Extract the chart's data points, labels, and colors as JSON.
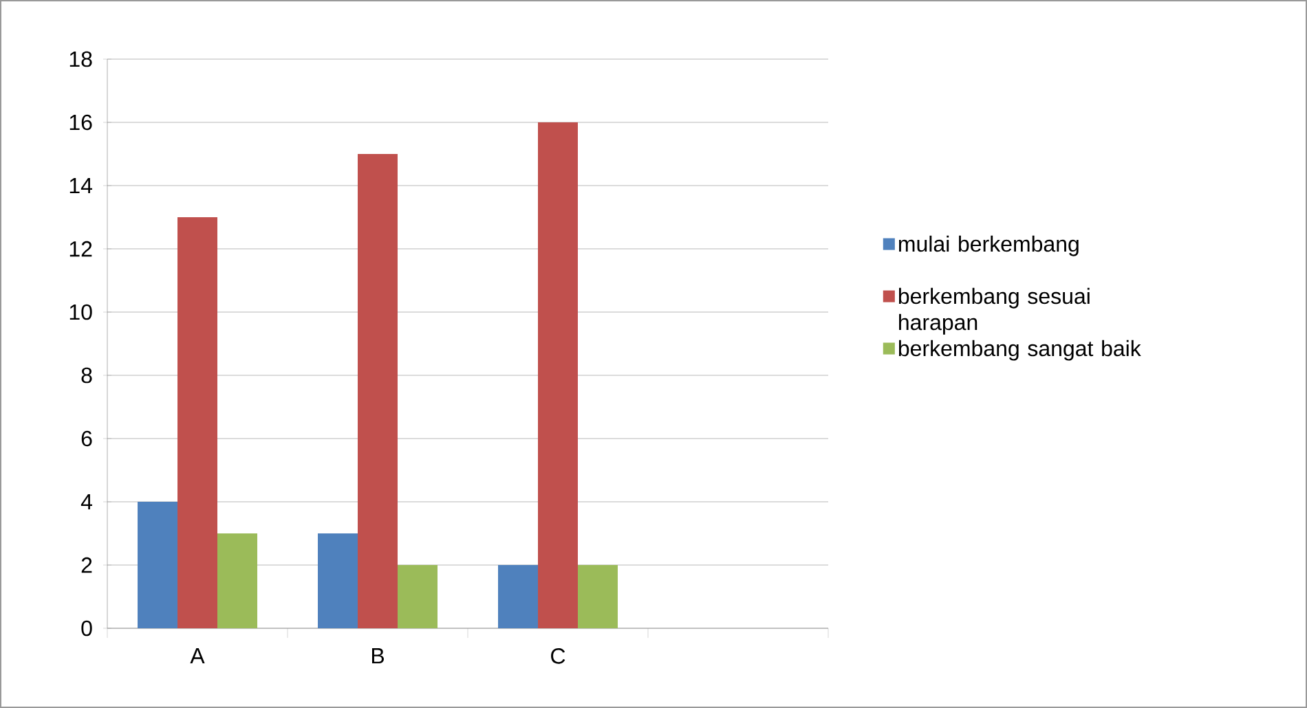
{
  "chart_data": {
    "type": "bar",
    "categories": [
      "A",
      "B",
      "C",
      null
    ],
    "series": [
      {
        "name": "mulai berkembang",
        "color": "#4f81bd",
        "values": [
          4,
          3,
          2,
          null
        ]
      },
      {
        "name": "berkembang sesuai harapan",
        "color": "#c0504d",
        "values": [
          13,
          15,
          16,
          null
        ]
      },
      {
        "name": "berkembang sangat baik",
        "color": "#9bbb59",
        "values": [
          3,
          2,
          2,
          null
        ]
      }
    ],
    "ylim": [
      0,
      18
    ],
    "yticks": [
      0,
      2,
      4,
      6,
      8,
      10,
      12,
      14,
      16,
      18
    ],
    "grid": "y",
    "legend": "right"
  }
}
